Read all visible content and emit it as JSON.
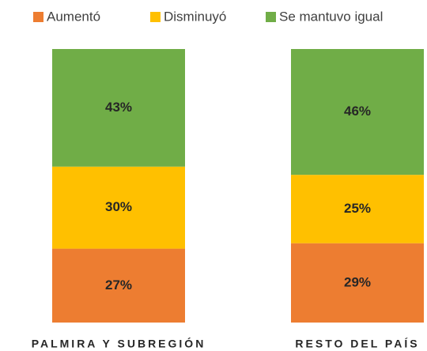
{
  "chart_data": {
    "type": "stacked_bar",
    "categories": [
      "PALMIRA Y SUBREGIÓN",
      "RESTO DEL PAÍS"
    ],
    "series": [
      {
        "name": "Aumentó",
        "color": "#ED7D31",
        "values": [
          27,
          29
        ],
        "value_labels": [
          "27%",
          "29%"
        ]
      },
      {
        "name": "Disminuyó",
        "color": "#FFC000",
        "values": [
          30,
          25
        ],
        "value_labels": [
          "30%",
          "25%"
        ]
      },
      {
        "name": "Se mantuvo igual",
        "color": "#70AD47",
        "values": [
          43,
          46
        ],
        "value_labels": [
          "43%",
          "46%"
        ]
      }
    ],
    "legend": "top"
  }
}
